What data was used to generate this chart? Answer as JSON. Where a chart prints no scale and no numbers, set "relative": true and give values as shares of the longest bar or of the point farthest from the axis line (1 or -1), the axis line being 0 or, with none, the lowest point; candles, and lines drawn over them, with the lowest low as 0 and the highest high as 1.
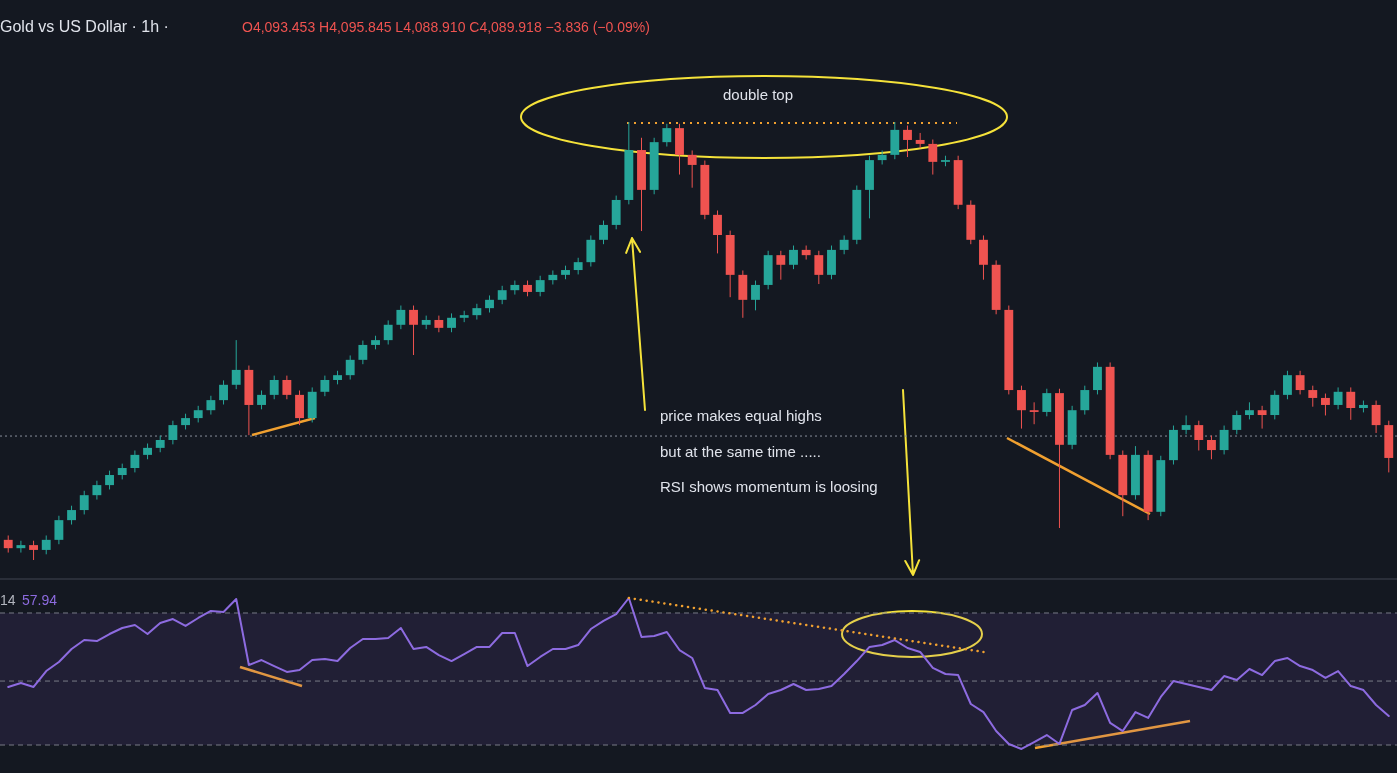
{
  "chart_data": [
    {
      "type": "candlestick",
      "title": "Gold vs US Dollar · 1h ·",
      "relative": true,
      "annotations": [
        "O4,093.453 H4,095.845 L4,088.910 C4,089.918 −3.836 (−0.09%)",
        "double top",
        "price makes equal highs",
        "but at the same time .....",
        "RSI shows momentum is loosing"
      ],
      "ref_lines": [
        {
          "axis": "y",
          "value": 0.283,
          "color": "#8a8f9c",
          "line_style": "dotted"
        }
      ],
      "categories": [
        null,
        null,
        null,
        null,
        null,
        null,
        null,
        null,
        null,
        null,
        null,
        null,
        null,
        null,
        null,
        null,
        null,
        null,
        null,
        null,
        null,
        null,
        null,
        null,
        null,
        null,
        null,
        null,
        null,
        null,
        null,
        null,
        null,
        null,
        null,
        null,
        null,
        null,
        null,
        null,
        null,
        null,
        null,
        null,
        null,
        null,
        null,
        null,
        null,
        null,
        null,
        null,
        null,
        null,
        null,
        null,
        null,
        null,
        null,
        null,
        null,
        null,
        null,
        null,
        null,
        null,
        null,
        null,
        null,
        null,
        null,
        null,
        null,
        null,
        null,
        null,
        null,
        null,
        null,
        null,
        null,
        null,
        null,
        null,
        null,
        null,
        null,
        null,
        null,
        null,
        null,
        null,
        null,
        null,
        null,
        null,
        null,
        null,
        null,
        null,
        null,
        null,
        null,
        null,
        null,
        null,
        null,
        null,
        null,
        null
      ],
      "ohlc": [
        [
          0.046,
          0.056,
          0.017,
          0.027
        ],
        [
          0.027,
          0.044,
          0.017,
          0.034
        ],
        [
          0.034,
          0.044,
          0,
          0.023
        ],
        [
          0.023,
          0.056,
          0.013,
          0.046
        ],
        [
          0.046,
          0.101,
          0.036,
          0.091
        ],
        [
          0.091,
          0.124,
          0.081,
          0.114
        ],
        [
          0.114,
          0.158,
          0.104,
          0.148
        ],
        [
          0.148,
          0.181,
          0.138,
          0.171
        ],
        [
          0.171,
          0.204,
          0.161,
          0.194
        ],
        [
          0.194,
          0.22,
          0.184,
          0.21
        ],
        [
          0.21,
          0.25,
          0.2,
          0.24
        ],
        [
          0.24,
          0.266,
          0.23,
          0.256
        ],
        [
          0.256,
          0.284,
          0.246,
          0.274
        ],
        [
          0.274,
          0.318,
          0.264,
          0.308
        ],
        [
          0.308,
          0.334,
          0.298,
          0.324
        ],
        [
          0.324,
          0.352,
          0.314,
          0.342
        ],
        [
          0.342,
          0.375,
          0.332,
          0.365
        ],
        [
          0.365,
          0.41,
          0.355,
          0.4
        ],
        [
          0.4,
          0.502,
          0.39,
          0.434
        ],
        [
          0.434,
          0.444,
          0.285,
          0.354
        ],
        [
          0.354,
          0.387,
          0.344,
          0.377
        ],
        [
          0.377,
          0.421,
          0.367,
          0.411
        ],
        [
          0.411,
          0.421,
          0.367,
          0.377
        ],
        [
          0.377,
          0.387,
          0.308,
          0.324
        ],
        [
          0.324,
          0.394,
          0.314,
          0.384
        ],
        [
          0.384,
          0.421,
          0.374,
          0.411
        ],
        [
          0.411,
          0.432,
          0.401,
          0.422
        ],
        [
          0.422,
          0.467,
          0.412,
          0.457
        ],
        [
          0.457,
          0.501,
          0.447,
          0.491
        ],
        [
          0.491,
          0.512,
          0.481,
          0.502
        ],
        [
          0.502,
          0.547,
          0.492,
          0.537
        ],
        [
          0.537,
          0.581,
          0.527,
          0.571
        ],
        [
          0.571,
          0.581,
          0.468,
          0.537
        ],
        [
          0.537,
          0.558,
          0.527,
          0.548
        ],
        [
          0.548,
          0.558,
          0.52,
          0.53
        ],
        [
          0.53,
          0.563,
          0.52,
          0.553
        ],
        [
          0.553,
          0.569,
          0.543,
          0.559
        ],
        [
          0.559,
          0.585,
          0.549,
          0.575
        ],
        [
          0.575,
          0.604,
          0.565,
          0.594
        ],
        [
          0.594,
          0.626,
          0.584,
          0.616
        ],
        [
          0.616,
          0.638,
          0.606,
          0.628
        ],
        [
          0.628,
          0.638,
          0.602,
          0.612
        ],
        [
          0.612,
          0.649,
          0.602,
          0.639
        ],
        [
          0.639,
          0.661,
          0.629,
          0.651
        ],
        [
          0.651,
          0.672,
          0.641,
          0.662
        ],
        [
          0.662,
          0.69,
          0.652,
          0.68
        ],
        [
          0.68,
          0.741,
          0.67,
          0.731
        ],
        [
          0.731,
          0.775,
          0.721,
          0.765
        ],
        [
          0.765,
          0.832,
          0.755,
          0.822
        ],
        [
          0.822,
          1,
          0.812,
          0.936
        ],
        [
          0.936,
          0.964,
          0.751,
          0.845
        ],
        [
          0.845,
          0.964,
          0.835,
          0.954
        ],
        [
          0.954,
          0.996,
          0.944,
          0.986
        ],
        [
          0.986,
          0.996,
          0.88,
          0.925
        ],
        [
          0.925,
          0.935,
          0.85,
          0.902
        ],
        [
          0.902,
          0.912,
          0.778,
          0.788
        ],
        [
          0.788,
          0.798,
          0.7,
          0.742
        ],
        [
          0.742,
          0.752,
          0.6,
          0.651
        ],
        [
          0.651,
          0.661,
          0.553,
          0.594
        ],
        [
          0.594,
          0.638,
          0.57,
          0.628
        ],
        [
          0.628,
          0.706,
          0.618,
          0.696
        ],
        [
          0.696,
          0.706,
          0.64,
          0.674
        ],
        [
          0.674,
          0.718,
          0.664,
          0.708
        ],
        [
          0.708,
          0.718,
          0.686,
          0.696
        ],
        [
          0.696,
          0.706,
          0.63,
          0.651
        ],
        [
          0.651,
          0.718,
          0.641,
          0.708
        ],
        [
          0.708,
          0.741,
          0.698,
          0.731
        ],
        [
          0.731,
          0.855,
          0.721,
          0.845
        ],
        [
          0.845,
          0.923,
          0.78,
          0.913
        ],
        [
          0.913,
          0.935,
          0.903,
          0.925
        ],
        [
          0.925,
          1,
          0.915,
          0.982
        ],
        [
          0.982,
          0.992,
          0.92,
          0.959
        ],
        [
          0.959,
          0.975,
          0.94,
          0.95
        ],
        [
          0.95,
          0.96,
          0.88,
          0.909
        ],
        [
          0.909,
          0.923,
          0.899,
          0.913
        ],
        [
          0.913,
          0.923,
          0.801,
          0.811
        ],
        [
          0.811,
          0.821,
          0.721,
          0.731
        ],
        [
          0.731,
          0.741,
          0.64,
          0.674
        ],
        [
          0.674,
          0.684,
          0.561,
          0.571
        ],
        [
          0.571,
          0.581,
          0.378,
          0.388
        ],
        [
          0.388,
          0.398,
          0.3,
          0.342
        ],
        [
          0.342,
          0.36,
          0.31,
          0.338
        ],
        [
          0.338,
          0.391,
          0.328,
          0.381
        ],
        [
          0.381,
          0.391,
          0.073,
          0.263
        ],
        [
          0.263,
          0.352,
          0.253,
          0.342
        ],
        [
          0.342,
          0.398,
          0.332,
          0.388
        ],
        [
          0.388,
          0.451,
          0.378,
          0.441
        ],
        [
          0.441,
          0.451,
          0.23,
          0.24
        ],
        [
          0.24,
          0.25,
          0.1,
          0.148
        ],
        [
          0.148,
          0.26,
          0.138,
          0.24
        ],
        [
          0.24,
          0.25,
          0.091,
          0.11
        ],
        [
          0.11,
          0.238,
          0.1,
          0.228
        ],
        [
          0.228,
          0.307,
          0.218,
          0.297
        ],
        [
          0.297,
          0.33,
          0.287,
          0.308
        ],
        [
          0.308,
          0.318,
          0.25,
          0.274
        ],
        [
          0.274,
          0.284,
          0.23,
          0.251
        ],
        [
          0.251,
          0.307,
          0.241,
          0.297
        ],
        [
          0.297,
          0.341,
          0.287,
          0.331
        ],
        [
          0.331,
          0.36,
          0.321,
          0.342
        ],
        [
          0.342,
          0.352,
          0.3,
          0.331
        ],
        [
          0.331,
          0.387,
          0.321,
          0.377
        ],
        [
          0.377,
          0.432,
          0.367,
          0.422
        ],
        [
          0.422,
          0.432,
          0.378,
          0.388
        ],
        [
          0.388,
          0.398,
          0.35,
          0.37
        ],
        [
          0.37,
          0.38,
          0.33,
          0.354
        ],
        [
          0.354,
          0.394,
          0.344,
          0.384
        ],
        [
          0.384,
          0.394,
          0.32,
          0.347
        ],
        [
          0.347,
          0.364,
          0.337,
          0.354
        ],
        [
          0.354,
          0.364,
          0.29,
          0.308
        ],
        [
          0.308,
          0.318,
          0.2,
          0.233
        ]
      ]
    },
    {
      "type": "line",
      "relative": true,
      "annotations": [
        "14",
        "57.94"
      ],
      "bands": [
        {
          "axis": "y",
          "from": 0,
          "to": 0.898,
          "color": "#7e57c2"
        }
      ],
      "ref_lines": [
        {
          "axis": "y",
          "value": 0.898,
          "color": "#787b86",
          "line_style": "dashed"
        },
        {
          "axis": "y",
          "value": 0.435,
          "color": "#787b86",
          "line_style": "dashed"
        },
        {
          "axis": "y",
          "value": 0,
          "color": "#787b86",
          "line_style": "dashed"
        }
      ],
      "categories": [
        null,
        null,
        null,
        null,
        null,
        null,
        null,
        null,
        null,
        null,
        null,
        null,
        null,
        null,
        null,
        null,
        null,
        null,
        null,
        null,
        null,
        null,
        null,
        null,
        null,
        null,
        null,
        null,
        null,
        null,
        null,
        null,
        null,
        null,
        null,
        null,
        null,
        null,
        null,
        null,
        null,
        null,
        null,
        null,
        null,
        null,
        null,
        null,
        null,
        null,
        null,
        null,
        null,
        null,
        null,
        null,
        null,
        null,
        null,
        null,
        null,
        null,
        null,
        null,
        null,
        null,
        null,
        null,
        null,
        null,
        null,
        null,
        null,
        null,
        null,
        null,
        null,
        null,
        null,
        null,
        null,
        null,
        null,
        null,
        null,
        null,
        null,
        null,
        null,
        null,
        null,
        null,
        null,
        null,
        null,
        null,
        null,
        null,
        null,
        null,
        null,
        null,
        null,
        null,
        null,
        null,
        null,
        null,
        null,
        null
      ],
      "series": [
        {
          "color": "#8d6be0",
          "values": [
            0.395,
            0.422,
            0.395,
            0.503,
            0.565,
            0.653,
            0.714,
            0.707,
            0.755,
            0.796,
            0.816,
            0.755,
            0.83,
            0.857,
            0.81,
            0.864,
            0.912,
            0.905,
            0.993,
            0.544,
            0.578,
            0.537,
            0.497,
            0.51,
            0.578,
            0.585,
            0.571,
            0.66,
            0.721,
            0.721,
            0.728,
            0.796,
            0.653,
            0.667,
            0.612,
            0.571,
            0.619,
            0.667,
            0.667,
            0.762,
            0.762,
            0.537,
            0.599,
            0.653,
            0.653,
            0.68,
            0.789,
            0.844,
            0.891,
            1,
            0.735,
            0.741,
            0.769,
            0.646,
            0.592,
            0.388,
            0.374,
            0.218,
            0.218,
            0.272,
            0.347,
            0.374,
            0.415,
            0.374,
            0.381,
            0.401,
            0.483,
            0.571,
            0.667,
            0.68,
            0.714,
            0.66,
            0.633,
            0.524,
            0.483,
            0.476,
            0.279,
            0.224,
            0.095,
            0.007,
            -0.027,
            0.02,
            0.068,
            0.007,
            0.238,
            0.272,
            0.354,
            0.15,
            0.095,
            0.224,
            0.184,
            0.327,
            0.435,
            0.415,
            0.395,
            0.374,
            0.469,
            0.442,
            0.517,
            0.476,
            0.571,
            0.592,
            0.537,
            0.51,
            0.456,
            0.503,
            0.401,
            0.374,
            0.272,
            0.197
          ]
        },
        {
          "color": "#f0a030",
          "line_style": "dotted",
          "values": [
            null,
            null,
            null,
            null,
            null,
            null,
            null,
            null,
            null,
            null,
            null,
            null,
            null,
            null,
            null,
            null,
            null,
            null,
            null,
            null,
            null,
            null,
            null,
            null,
            null,
            null,
            null,
            null,
            null,
            null,
            null,
            null,
            null,
            null,
            null,
            null,
            null,
            null,
            null,
            null,
            null,
            null,
            null,
            null,
            null,
            null,
            null,
            null,
            null,
            1,
            null,
            null,
            null,
            null,
            null,
            null,
            null,
            null,
            null,
            null,
            null,
            null,
            null,
            null,
            null,
            null,
            null,
            null,
            null,
            null,
            null,
            null,
            null,
            null,
            null,
            null,
            null,
            0.633,
            null,
            null,
            null,
            null,
            null,
            null,
            null,
            null,
            null,
            null,
            null,
            null,
            null,
            null,
            null,
            null,
            null,
            null,
            null,
            null,
            null,
            null,
            null,
            null,
            null,
            null,
            null,
            null,
            null,
            null,
            null,
            null
          ]
        }
      ]
    }
  ]
}
